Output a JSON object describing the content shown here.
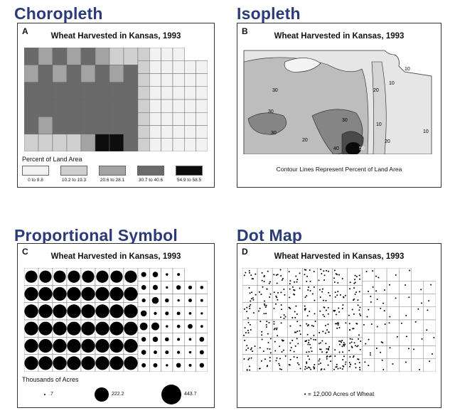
{
  "headings": {
    "choropleth": "Choropleth",
    "isopleth": "Isopleth",
    "proportional": "Proportional Symbol",
    "dot": "Dot Map"
  },
  "panels": {
    "a": {
      "letter": "A",
      "title": "Wheat Harvested in Kansas, 1993",
      "legend_title": "Percent of Land Area",
      "classes": [
        {
          "label": "0 to 9.8",
          "color": "#f2f2f2"
        },
        {
          "label": "10.2 to 19.3",
          "color": "#cfcfcf"
        },
        {
          "label": "20.6 to 28.1",
          "color": "#a3a3a3"
        },
        {
          "label": "30.7 to 40.6",
          "color": "#6a6a6a"
        },
        {
          "label": "54.9 to 58.5",
          "color": "#0d0d0d"
        }
      ]
    },
    "b": {
      "letter": "B",
      "title": "Wheat Harvested in Kansas, 1993",
      "caption": "Contour Lines Represent Percent of Land Area",
      "contour_labels": [
        "30",
        "30",
        "30",
        "20",
        "30",
        "20",
        "10",
        "40",
        "50",
        "20",
        "10",
        "10",
        "10"
      ]
    },
    "c": {
      "letter": "C",
      "title": "Wheat Harvested in Kansas, 1993",
      "legend_title": "Thousands of Acres",
      "legend_values": [
        ".7",
        "222.2",
        "443.7"
      ]
    },
    "d": {
      "letter": "D",
      "title": "Wheat Harvested in Kansas, 1993",
      "legend": "= 12,000 Acres of Wheat"
    }
  }
}
